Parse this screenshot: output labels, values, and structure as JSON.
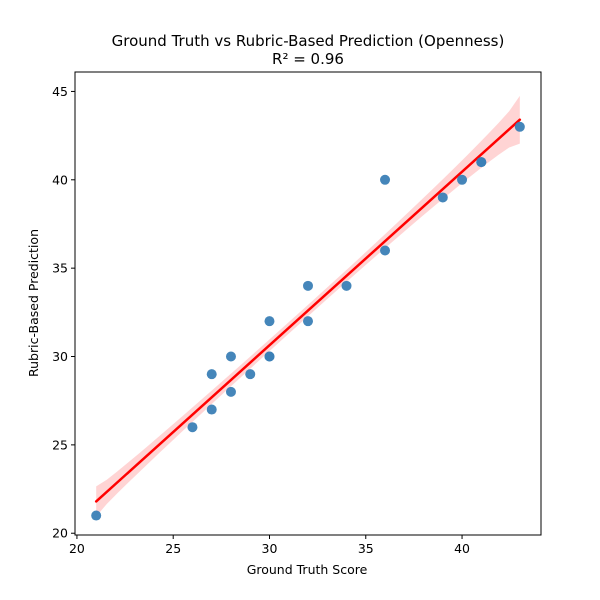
{
  "chart_data": {
    "type": "scatter",
    "title": "Ground Truth vs Rubric-Based Prediction (Openness)",
    "subtitle": "R² = 0.96",
    "xlabel": "Ground Truth Score",
    "ylabel": "Rubric-Based Prediction",
    "xlim": [
      19.9,
      44.1
    ],
    "ylim": [
      19.9,
      46.1
    ],
    "xticks": [
      20,
      25,
      30,
      35,
      40
    ],
    "yticks": [
      20,
      25,
      30,
      35,
      40,
      45
    ],
    "grid": false,
    "points": [
      {
        "x": 21,
        "y": 21
      },
      {
        "x": 26,
        "y": 26
      },
      {
        "x": 27,
        "y": 27
      },
      {
        "x": 27,
        "y": 29
      },
      {
        "x": 28,
        "y": 28
      },
      {
        "x": 28,
        "y": 30
      },
      {
        "x": 29,
        "y": 29
      },
      {
        "x": 30,
        "y": 30
      },
      {
        "x": 30,
        "y": 30
      },
      {
        "x": 30,
        "y": 32
      },
      {
        "x": 32,
        "y": 32
      },
      {
        "x": 32,
        "y": 34
      },
      {
        "x": 34,
        "y": 34
      },
      {
        "x": 36,
        "y": 36
      },
      {
        "x": 36,
        "y": 40
      },
      {
        "x": 39,
        "y": 39
      },
      {
        "x": 40,
        "y": 40
      },
      {
        "x": 41,
        "y": 41
      },
      {
        "x": 41,
        "y": 41
      },
      {
        "x": 43,
        "y": 43
      }
    ],
    "regression": {
      "x": [
        21,
        43
      ],
      "y": [
        21.8,
        43.4
      ],
      "ci_lower_at_ends": [
        21.0,
        42.1
      ],
      "ci_upper_at_ends": [
        22.7,
        44.8
      ]
    },
    "colors": {
      "points": "#3b7fb6",
      "line": "#ff0000",
      "band": "#ffcccc"
    }
  }
}
